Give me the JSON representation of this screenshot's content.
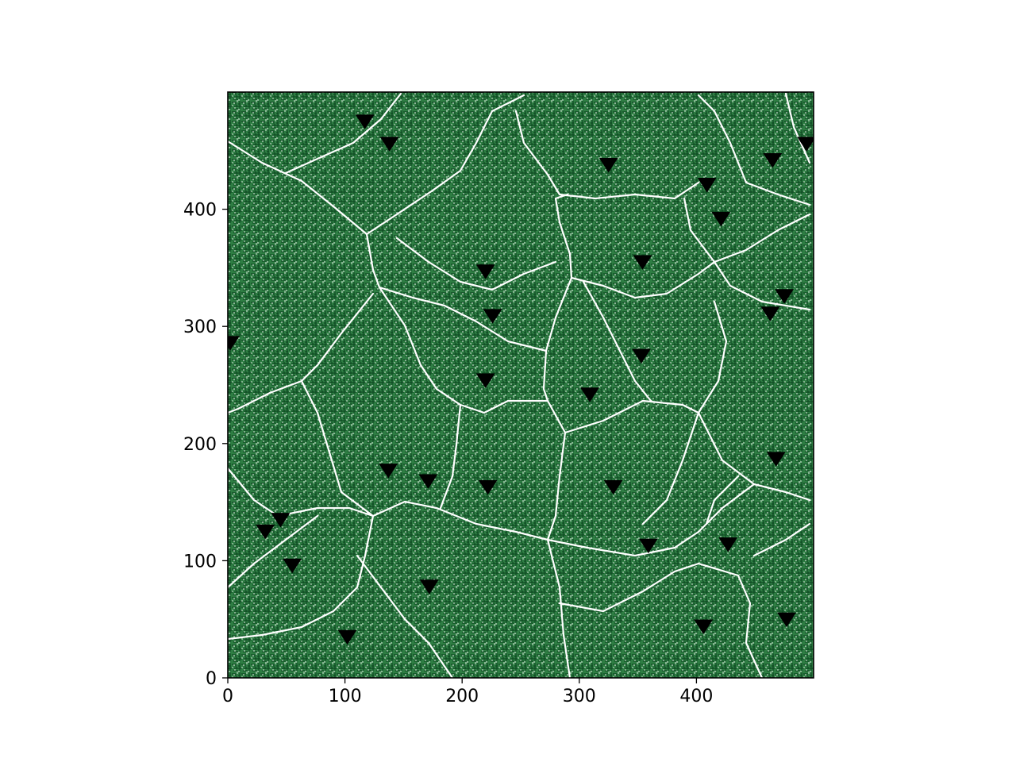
{
  "chart_data": {
    "type": "scatter",
    "title": "",
    "xlabel": "",
    "ylabel": "",
    "xlim": [
      0,
      500
    ],
    "ylim": [
      0,
      500
    ],
    "xticks": [
      0,
      100,
      200,
      300,
      400
    ],
    "yticks": [
      0,
      100,
      200,
      300,
      400
    ],
    "grid": false,
    "legend": "none",
    "background": "green maze texture with white channels (river-network / watershed image)",
    "marker": "triangle-down",
    "colors": {
      "background_fill": "#2e7d43",
      "texture_dark": "#0e4a22",
      "channel_lines": "#ffffff",
      "marker": "#000000",
      "axes": "#000000"
    },
    "series": [
      {
        "points": [
          [
            117,
            476
          ],
          [
            138,
            457
          ],
          [
            325,
            439
          ],
          [
            409,
            422
          ],
          [
            465,
            443
          ],
          [
            494,
            457
          ],
          [
            421,
            393
          ],
          [
            354,
            356
          ],
          [
            220,
            348
          ],
          [
            226,
            310
          ],
          [
            475,
            327
          ],
          [
            463,
            312
          ],
          [
            2,
            287
          ],
          [
            353,
            276
          ],
          [
            220,
            255
          ],
          [
            309,
            243
          ],
          [
            137,
            178
          ],
          [
            171,
            169
          ],
          [
            222,
            164
          ],
          [
            329,
            164
          ],
          [
            468,
            188
          ],
          [
            45,
            136
          ],
          [
            32,
            126
          ],
          [
            55,
            97
          ],
          [
            359,
            114
          ],
          [
            427,
            115
          ],
          [
            172,
            79
          ],
          [
            102,
            36
          ],
          [
            406,
            45
          ],
          [
            477,
            51
          ]
        ]
      }
    ]
  }
}
